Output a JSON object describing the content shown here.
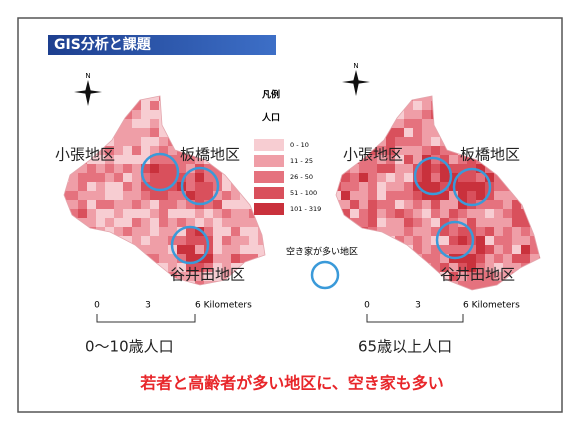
{
  "header": {
    "title": "GIS分析と課題"
  },
  "legend": {
    "title": "凡例",
    "subtitle": "人口",
    "classes": [
      {
        "label": "0 - 10",
        "color": "#f7cdd2"
      },
      {
        "label": "11 - 25",
        "color": "#ef9ea7"
      },
      {
        "label": "26 - 50",
        "color": "#e5727e"
      },
      {
        "label": "51 - 100",
        "color": "#d9505c"
      },
      {
        "label": "101 - 319",
        "color": "#c9313c"
      }
    ]
  },
  "maps": [
    {
      "caption": "0～10歳人口",
      "north": "N",
      "districts": [
        "小張地区",
        "板橋地区",
        "谷井田地区"
      ],
      "scale": [
        "0",
        "3",
        "6 Kilometers"
      ]
    },
    {
      "caption": "65歳以上人口",
      "north": "N",
      "districts": [
        "小張地区",
        "板橋地区",
        "谷井田地区"
      ],
      "scale": [
        "0",
        "3",
        "6 Kilometers"
      ]
    }
  ],
  "marker_label": "空き家が多い地区",
  "conclusion": "若者と高齢者が多い地区に、空き家も多い"
}
